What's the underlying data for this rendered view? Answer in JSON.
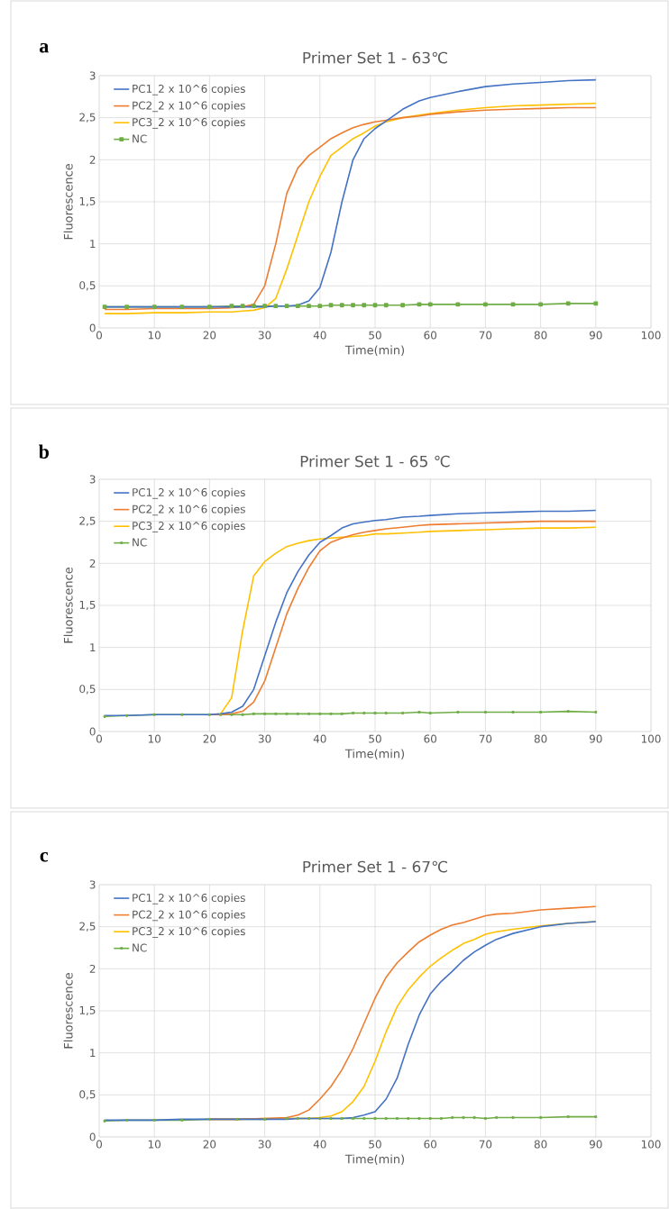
{
  "chart_data": [
    {
      "type": "line",
      "title": "Primer Set 1 - 63℃",
      "xlabel": "Time(min)",
      "ylabel": "Fluorescence",
      "annotations": [
        "a"
      ],
      "x": [
        1,
        5,
        10,
        15,
        20,
        24,
        26,
        28,
        30,
        32,
        34,
        36,
        38,
        40,
        42,
        44,
        46,
        48,
        50,
        52,
        55,
        58,
        60,
        65,
        70,
        75,
        80,
        85,
        90
      ],
      "series": [
        {
          "name": "PC1_2 x 10^6 copies",
          "color": "#4472c4",
          "values": [
            0.25,
            0.25,
            0.25,
            0.25,
            0.25,
            0.25,
            0.25,
            0.25,
            0.25,
            0.26,
            0.26,
            0.27,
            0.32,
            0.48,
            0.9,
            1.5,
            2.0,
            2.25,
            2.37,
            2.46,
            2.6,
            2.7,
            2.74,
            2.81,
            2.87,
            2.9,
            2.92,
            2.94,
            2.95
          ]
        },
        {
          "name": "PC2_2 x 10^6 copies",
          "color": "#ed7d31",
          "values": [
            0.22,
            0.22,
            0.23,
            0.23,
            0.23,
            0.24,
            0.25,
            0.28,
            0.5,
            1.0,
            1.6,
            1.9,
            2.05,
            2.15,
            2.25,
            2.32,
            2.38,
            2.42,
            2.45,
            2.47,
            2.5,
            2.52,
            2.54,
            2.57,
            2.59,
            2.6,
            2.61,
            2.62,
            2.62
          ]
        },
        {
          "name": "PC3_2 x 10^6 copies",
          "color": "#ffc000",
          "values": [
            0.17,
            0.17,
            0.18,
            0.18,
            0.19,
            0.19,
            0.2,
            0.21,
            0.24,
            0.35,
            0.7,
            1.1,
            1.5,
            1.8,
            2.05,
            2.15,
            2.25,
            2.32,
            2.4,
            2.45,
            2.5,
            2.53,
            2.55,
            2.59,
            2.62,
            2.64,
            2.65,
            2.66,
            2.67
          ]
        },
        {
          "name": "NC",
          "color": "#70ad47",
          "marker": "square",
          "values": [
            0.25,
            0.25,
            0.25,
            0.25,
            0.25,
            0.26,
            0.26,
            0.26,
            0.26,
            0.26,
            0.26,
            0.26,
            0.26,
            0.26,
            0.27,
            0.27,
            0.27,
            0.27,
            0.27,
            0.27,
            0.27,
            0.28,
            0.28,
            0.28,
            0.28,
            0.28,
            0.28,
            0.29,
            0.29
          ]
        }
      ],
      "xlim": [
        0,
        100
      ],
      "xticks": [
        0,
        10,
        20,
        30,
        40,
        50,
        60,
        70,
        80,
        90,
        100
      ],
      "ylim": [
        0,
        3
      ],
      "yticks": [
        0,
        {
          "value": 0.5,
          "label": "0,5"
        },
        1,
        {
          "value": 1.5,
          "label": "1,5"
        },
        2,
        {
          "value": 2.5,
          "label": "2,5"
        },
        3
      ],
      "grid": true,
      "legend": "top left"
    },
    {
      "type": "line",
      "title": "Primer Set 1 - 65 ℃",
      "xlabel": "Time(min)",
      "ylabel": "Fluorescence",
      "annotations": [
        "b"
      ],
      "x": [
        1,
        5,
        10,
        15,
        20,
        22,
        24,
        26,
        28,
        30,
        32,
        34,
        36,
        38,
        40,
        42,
        44,
        46,
        48,
        50,
        52,
        55,
        58,
        60,
        65,
        70,
        75,
        80,
        85,
        90
      ],
      "series": [
        {
          "name": "PC1_2 x 10^6 copies",
          "color": "#4472c4",
          "values": [
            0.19,
            0.19,
            0.2,
            0.2,
            0.2,
            0.21,
            0.23,
            0.3,
            0.5,
            0.9,
            1.3,
            1.65,
            1.9,
            2.1,
            2.25,
            2.33,
            2.42,
            2.47,
            2.49,
            2.51,
            2.52,
            2.55,
            2.56,
            2.57,
            2.59,
            2.6,
            2.61,
            2.62,
            2.62,
            2.63
          ]
        },
        {
          "name": "PC2_2 x 10^6 copies",
          "color": "#ed7d31",
          "values": [
            null,
            null,
            null,
            null,
            0.2,
            0.2,
            0.21,
            0.24,
            0.35,
            0.6,
            1.0,
            1.4,
            1.7,
            1.95,
            2.15,
            2.25,
            2.3,
            2.34,
            2.37,
            2.39,
            2.41,
            2.43,
            2.45,
            2.46,
            2.47,
            2.48,
            2.49,
            2.5,
            2.5,
            2.5
          ]
        },
        {
          "name": "PC3_2 x 10^6 copies",
          "color": "#ffc000",
          "values": [
            null,
            null,
            null,
            null,
            0.2,
            0.21,
            0.4,
            1.2,
            1.85,
            2.02,
            2.12,
            2.2,
            2.24,
            2.27,
            2.29,
            2.3,
            2.31,
            2.32,
            2.33,
            2.35,
            2.35,
            2.36,
            2.37,
            2.38,
            2.39,
            2.4,
            2.41,
            2.42,
            2.42,
            2.43
          ]
        },
        {
          "name": "NC",
          "color": "#70ad47",
          "marker": "cross",
          "values": [
            0.18,
            0.19,
            0.2,
            0.2,
            0.2,
            0.2,
            0.2,
            0.2,
            0.21,
            0.21,
            0.21,
            0.21,
            0.21,
            0.21,
            0.21,
            0.21,
            0.21,
            0.22,
            0.22,
            0.22,
            0.22,
            0.22,
            0.23,
            0.22,
            0.23,
            0.23,
            0.23,
            0.23,
            0.24,
            0.23
          ]
        }
      ],
      "xlim": [
        0,
        100
      ],
      "xticks": [
        0,
        10,
        20,
        30,
        40,
        50,
        60,
        70,
        80,
        90,
        100
      ],
      "ylim": [
        0,
        3
      ],
      "yticks": [
        0,
        {
          "value": 0.5,
          "label": "0,5"
        },
        1,
        {
          "value": 1.5,
          "label": "1,5"
        },
        2,
        {
          "value": 2.5,
          "label": "2,5"
        },
        3
      ],
      "grid": true,
      "legend": "top left"
    },
    {
      "type": "line",
      "title": "Primer Set 1 - 67℃",
      "xlabel": "Time(min)",
      "ylabel": "Fluorescence",
      "annotations": [
        "c"
      ],
      "x": [
        1,
        5,
        10,
        15,
        20,
        25,
        30,
        34,
        36,
        38,
        40,
        42,
        44,
        46,
        48,
        50,
        52,
        54,
        56,
        58,
        60,
        62,
        64,
        66,
        68,
        70,
        72,
        75,
        80,
        85,
        90
      ],
      "series": [
        {
          "name": "PC1_2 x 10^6 copies",
          "color": "#4472c4",
          "values": [
            0.2,
            0.2,
            0.2,
            0.21,
            0.21,
            0.21,
            0.21,
            0.21,
            0.22,
            0.22,
            0.22,
            0.22,
            0.22,
            0.23,
            0.26,
            0.3,
            0.45,
            0.7,
            1.1,
            1.45,
            1.7,
            1.85,
            1.97,
            2.1,
            2.2,
            2.28,
            2.35,
            2.42,
            2.5,
            2.54,
            2.56
          ]
        },
        {
          "name": "PC2_2 x 10^6 copies",
          "color": "#ed7d31",
          "values": [
            null,
            null,
            null,
            null,
            0.21,
            0.21,
            0.22,
            0.23,
            0.26,
            0.32,
            0.45,
            0.6,
            0.8,
            1.05,
            1.35,
            1.65,
            1.9,
            2.07,
            2.2,
            2.32,
            2.4,
            2.47,
            2.52,
            2.55,
            2.59,
            2.63,
            2.65,
            2.66,
            2.7,
            2.72,
            2.74
          ]
        },
        {
          "name": "PC3_2 x 10^6 copies",
          "color": "#ffc000",
          "values": [
            null,
            null,
            null,
            null,
            0.21,
            0.21,
            0.22,
            0.22,
            0.22,
            0.22,
            0.23,
            0.25,
            0.3,
            0.42,
            0.6,
            0.9,
            1.25,
            1.55,
            1.75,
            1.9,
            2.03,
            2.13,
            2.22,
            2.3,
            2.35,
            2.41,
            2.44,
            2.47,
            2.51,
            2.54,
            2.56
          ]
        },
        {
          "name": "NC",
          "color": "#70ad47",
          "marker": "cross",
          "values": [
            0.19,
            0.2,
            0.2,
            0.2,
            0.21,
            0.21,
            0.21,
            0.22,
            0.22,
            0.22,
            0.22,
            0.22,
            0.22,
            0.22,
            0.22,
            0.22,
            0.22,
            0.22,
            0.22,
            0.22,
            0.22,
            0.22,
            0.23,
            0.23,
            0.23,
            0.22,
            0.23,
            0.23,
            0.23,
            0.24,
            0.24
          ]
        }
      ],
      "xlim": [
        0,
        100
      ],
      "xticks": [
        0,
        10,
        20,
        30,
        40,
        50,
        60,
        70,
        80,
        90,
        100
      ],
      "ylim": [
        0,
        3
      ],
      "yticks": [
        0,
        {
          "value": 0.5,
          "label": "0,5"
        },
        1,
        {
          "value": 1.5,
          "label": "1,5"
        },
        2,
        {
          "value": 2.5,
          "label": "2,5"
        },
        3
      ],
      "grid": true,
      "legend": "top left"
    }
  ]
}
